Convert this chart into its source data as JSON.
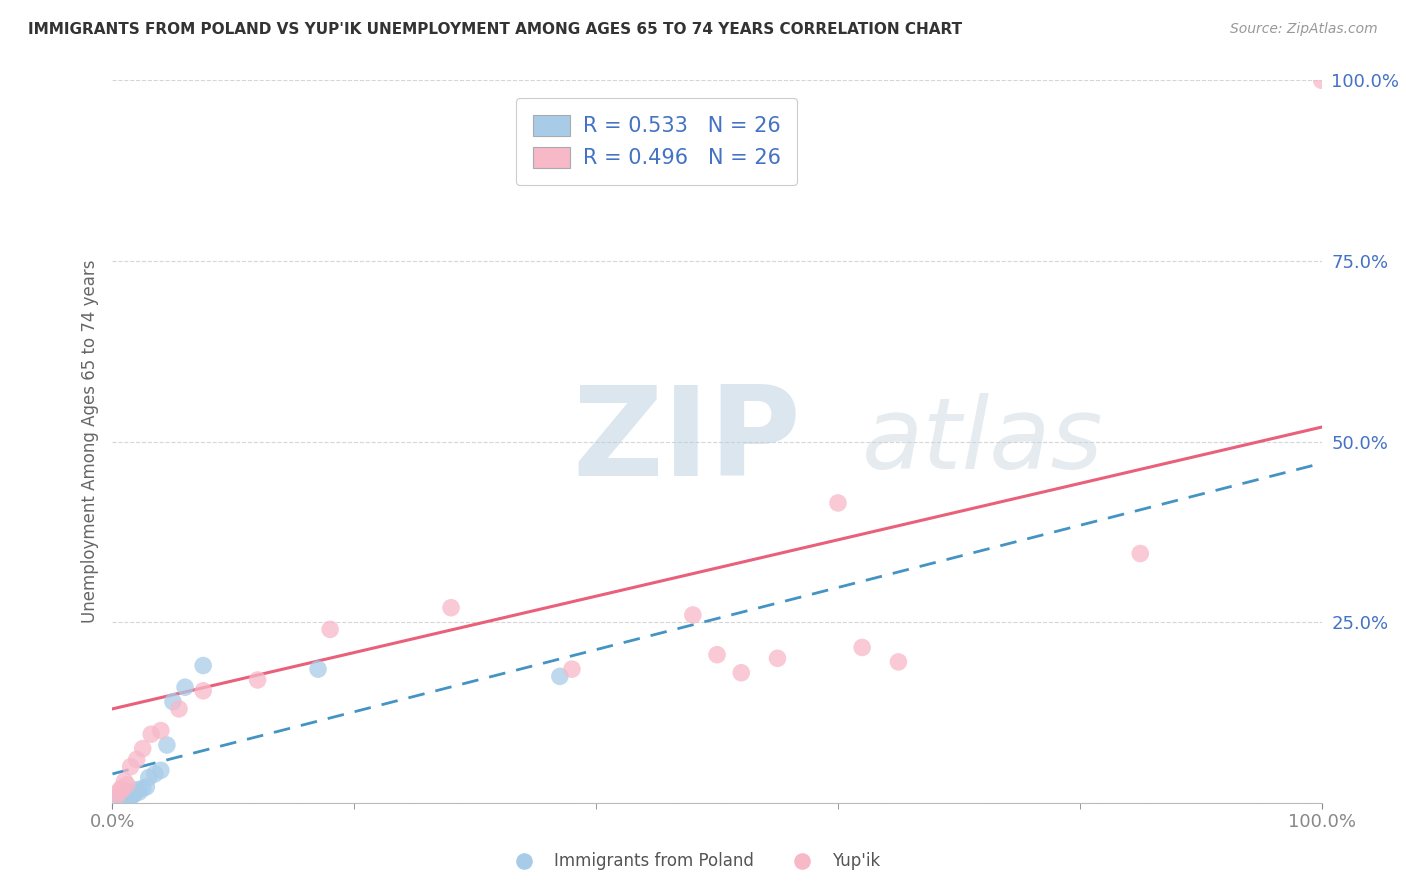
{
  "title": "IMMIGRANTS FROM POLAND VS YUP'IK UNEMPLOYMENT AMONG AGES 65 TO 74 YEARS CORRELATION CHART",
  "source": "Source: ZipAtlas.com",
  "ylabel": "Unemployment Among Ages 65 to 74 years",
  "xlim": [
    0.0,
    1.0
  ],
  "ylim": [
    0.0,
    1.0
  ],
  "xtick_positions": [
    0.0,
    1.0
  ],
  "xticklabels": [
    "0.0%",
    "100.0%"
  ],
  "ytick_positions": [
    0.0,
    0.25,
    0.5,
    0.75,
    1.0
  ],
  "yticklabels": [
    "",
    "25.0%",
    "50.0%",
    "75.0%",
    "100.0%"
  ],
  "legend_labels": [
    "Immigrants from Poland",
    "Yup'ik"
  ],
  "r_poland": "R = 0.533",
  "r_yupik": "R = 0.496",
  "n_poland": "N = 26",
  "n_yupik": "N = 26",
  "blue_scatter": "#a8cce8",
  "pink_scatter": "#f7b8c8",
  "blue_line": "#4393c3",
  "pink_line": "#e8607a",
  "grid_color": "#cccccc",
  "title_color": "#333333",
  "tick_color": "#4472c4",
  "source_color": "#999999",
  "legend_text_color": "#4472c4",
  "watermark_zip_color": "#c8d8e8",
  "watermark_atlas_color": "#d0d8e0",
  "poland_x": [
    0.003,
    0.005,
    0.006,
    0.007,
    0.008,
    0.009,
    0.01,
    0.011,
    0.012,
    0.013,
    0.015,
    0.016,
    0.018,
    0.02,
    0.022,
    0.025,
    0.028,
    0.03,
    0.035,
    0.04,
    0.045,
    0.05,
    0.06,
    0.075,
    0.17,
    0.37
  ],
  "poland_y": [
    0.005,
    0.007,
    0.005,
    0.008,
    0.006,
    0.007,
    0.008,
    0.012,
    0.01,
    0.015,
    0.008,
    0.01,
    0.012,
    0.018,
    0.015,
    0.02,
    0.022,
    0.035,
    0.04,
    0.045,
    0.08,
    0.14,
    0.16,
    0.19,
    0.185,
    0.175
  ],
  "yupik_x": [
    0.003,
    0.005,
    0.007,
    0.008,
    0.01,
    0.012,
    0.015,
    0.02,
    0.025,
    0.032,
    0.04,
    0.055,
    0.075,
    0.12,
    0.18,
    0.28,
    0.38,
    0.48,
    0.5,
    0.52,
    0.55,
    0.6,
    0.62,
    0.65,
    0.85,
    1.0
  ],
  "yupik_y": [
    0.008,
    0.015,
    0.02,
    0.018,
    0.03,
    0.025,
    0.05,
    0.06,
    0.075,
    0.095,
    0.1,
    0.13,
    0.155,
    0.17,
    0.24,
    0.27,
    0.185,
    0.26,
    0.205,
    0.18,
    0.2,
    0.415,
    0.215,
    0.195,
    0.345,
    1.0
  ],
  "pink_line_start_y": 0.13,
  "pink_line_end_y": 0.52,
  "blue_line_start_y": 0.04,
  "blue_line_end_y": 0.47
}
